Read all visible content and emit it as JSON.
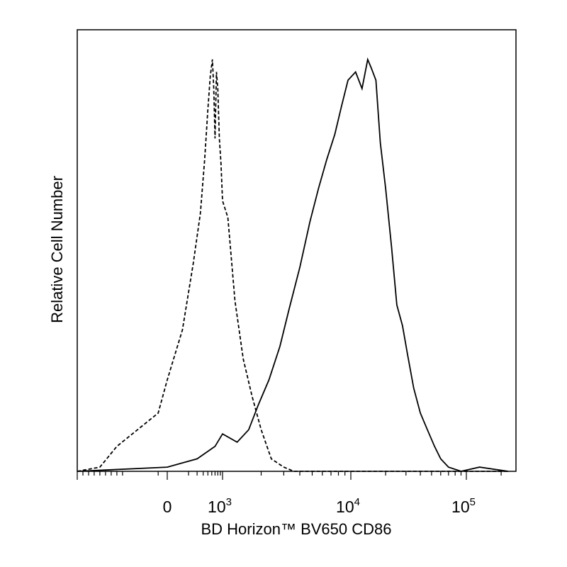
{
  "chart_data": {
    "type": "line",
    "title": "",
    "xlabel": "BD Horizon™ BV650 CD86",
    "ylabel": "Relative Cell Number",
    "x_scale": "biexponential",
    "xlim": [
      -1000,
      230000
    ],
    "ylim": [
      0,
      100
    ],
    "grid": false,
    "legend": "none",
    "tick_labels": [
      {
        "value": 0,
        "base": "0",
        "exp": ""
      },
      {
        "value": 1000,
        "base": "10",
        "exp": "3"
      },
      {
        "value": 10000,
        "base": "10",
        "exp": "4"
      },
      {
        "value": 100000,
        "base": "10",
        "exp": "5"
      }
    ],
    "series": [
      {
        "style": "dashed",
        "color": "#000000",
        "x": [
          -1000,
          -600,
          -300,
          -100,
          0,
          150,
          250,
          350,
          430,
          500,
          560,
          620,
          660,
          700,
          750,
          800,
          860,
          930,
          1000,
          1100,
          1250,
          1450,
          1700,
          2000,
          2400,
          3000,
          3600,
          100000,
          230000
        ],
        "y": [
          0,
          1,
          6,
          14,
          22,
          34,
          50,
          62,
          75,
          87,
          95,
          99,
          92,
          80,
          96,
          92,
          80,
          74,
          65,
          61,
          41,
          27,
          18,
          10,
          3,
          1,
          0,
          0,
          0
        ]
      },
      {
        "style": "solid",
        "color": "#000000",
        "x": [
          -1000,
          0,
          300,
          700,
          1000,
          1300,
          1600,
          1900,
          2300,
          2800,
          3300,
          4000,
          4800,
          5600,
          6500,
          7500,
          8500,
          9500,
          11000,
          12500,
          14000,
          15000,
          16500,
          18000,
          20000,
          22500,
          25000,
          28000,
          31000,
          35000,
          40000,
          46000,
          53000,
          60000,
          70000,
          90000,
          130000,
          230000
        ],
        "y": [
          0,
          1,
          3,
          6,
          9,
          7,
          10,
          16,
          22,
          30,
          39,
          49,
          60,
          68,
          75,
          81,
          88,
          94,
          96,
          92,
          99,
          97,
          94,
          79,
          68,
          54,
          40,
          35,
          28,
          20,
          14,
          10,
          6,
          3,
          1,
          0,
          1,
          0
        ]
      }
    ]
  }
}
